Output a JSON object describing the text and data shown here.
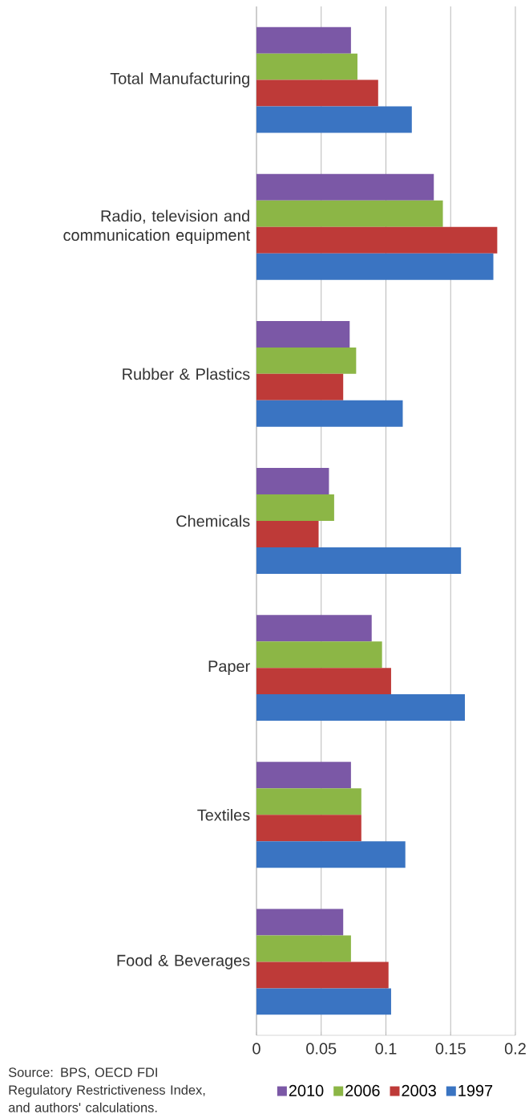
{
  "chart_data": {
    "type": "bar",
    "orientation": "horizontal",
    "categories": [
      "Total Manufacturing",
      "Radio, television and communication equipment",
      "Rubber & Plastics",
      "Chemicals",
      "Paper",
      "Textiles",
      "Food & Beverages"
    ],
    "series": [
      {
        "name": "2010",
        "color": "#7b58a6",
        "values": [
          0.073,
          0.137,
          0.072,
          0.056,
          0.089,
          0.073,
          0.067
        ]
      },
      {
        "name": "2006",
        "color": "#8cb646",
        "values": [
          0.078,
          0.144,
          0.077,
          0.06,
          0.097,
          0.081,
          0.073
        ]
      },
      {
        "name": "2003",
        "color": "#be3a38",
        "values": [
          0.094,
          0.186,
          0.067,
          0.048,
          0.104,
          0.081,
          0.102
        ]
      },
      {
        "name": "1997",
        "color": "#3a74c2",
        "values": [
          0.12,
          0.183,
          0.113,
          0.158,
          0.161,
          0.115,
          0.104
        ]
      }
    ],
    "xlim": [
      0,
      0.2
    ],
    "xticks": [
      0,
      0.05,
      0.1,
      0.15,
      0.2
    ],
    "grid": "x",
    "legend": "bottom",
    "annotations": [
      "Source: BPS, OECD FDI Regulatory Restrictiveness Index, and authors' calculations."
    ]
  }
}
